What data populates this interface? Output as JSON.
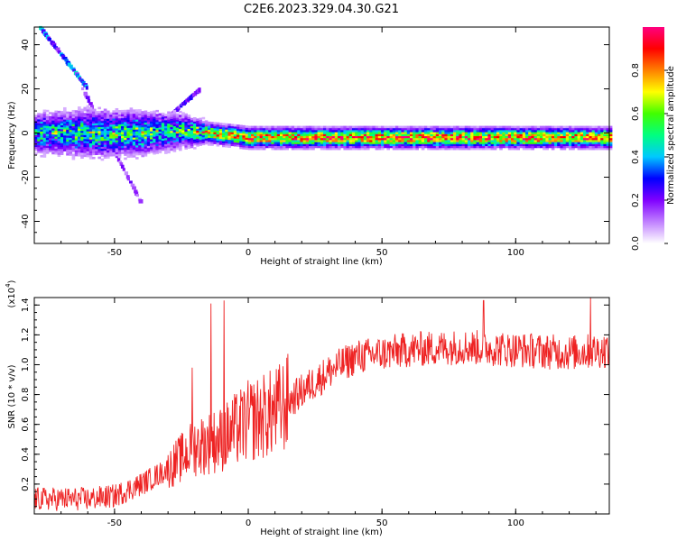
{
  "title": "C2E6.2023.329.04.30.G21",
  "chart_data": [
    {
      "type": "heatmap",
      "xlabel": "Height of straight line (km)",
      "ylabel": "Frequency (Hz)",
      "xlim": [
        -80,
        135
      ],
      "ylim": [
        -50,
        48
      ],
      "xticks": [
        -50,
        0,
        50,
        100
      ],
      "yticks": [
        -40,
        -20,
        0,
        20,
        40
      ],
      "colorbar": {
        "label": "Normalized spectral amplitude",
        "range": [
          0.0,
          1.0
        ],
        "ticks": [
          "0.0",
          "0.2",
          "0.4",
          "0.6",
          "0.8"
        ],
        "colors": [
          "#ffffff",
          "#c080ff",
          "#8000ff",
          "#0000ff",
          "#00c8ff",
          "#00ff80",
          "#40ff00",
          "#ffff00",
          "#ff8000",
          "#ff0000",
          "#ff0080"
        ]
      },
      "band": [
        {
          "x": -80,
          "center": 0,
          "width": 12,
          "peak": 0.55
        },
        {
          "x": -60,
          "center": 0,
          "width": 14,
          "peak": 0.6
        },
        {
          "x": -40,
          "center": 0,
          "width": 13,
          "peak": 0.62
        },
        {
          "x": -25,
          "center": 1,
          "width": 10,
          "peak": 0.6
        },
        {
          "x": -15,
          "center": 0,
          "width": 6,
          "peak": 0.85
        },
        {
          "x": 0,
          "center": -2,
          "width": 6,
          "peak": 0.9
        },
        {
          "x": 40,
          "center": -2,
          "width": 6,
          "peak": 0.95
        },
        {
          "x": 80,
          "center": -2,
          "width": 6,
          "peak": 0.95
        },
        {
          "x": 135,
          "center": -2,
          "width": 6,
          "peak": 0.9
        }
      ],
      "streaks": [
        {
          "from": [
            -78,
            48
          ],
          "to": [
            -60,
            20
          ],
          "level": 0.3
        },
        {
          "from": [
            -62,
            20
          ],
          "to": [
            -40,
            -32
          ],
          "level": 0.15
        },
        {
          "from": [
            -32,
            5
          ],
          "to": [
            -18,
            20
          ],
          "level": 0.2
        }
      ]
    },
    {
      "type": "line",
      "xlabel": "Height of straight line (km)",
      "ylabel": "SNR (10 * v/v)",
      "yscale_note": "(x10^4)",
      "xlim": [
        -80,
        135
      ],
      "ylim": [
        0.0,
        1.45
      ],
      "xticks": [
        -50,
        0,
        50,
        100
      ],
      "yticks": [
        0.2,
        0.4,
        0.6,
        0.8,
        1.0,
        1.2,
        1.4
      ],
      "color": "#ee2222",
      "trend": [
        {
          "x": -80,
          "y": 0.1
        },
        {
          "x": -60,
          "y": 0.1
        },
        {
          "x": -50,
          "y": 0.12
        },
        {
          "x": -40,
          "y": 0.2
        },
        {
          "x": -30,
          "y": 0.3
        },
        {
          "x": -20,
          "y": 0.45
        },
        {
          "x": -10,
          "y": 0.5
        },
        {
          "x": 0,
          "y": 0.62
        },
        {
          "x": 10,
          "y": 0.68
        },
        {
          "x": 20,
          "y": 0.82
        },
        {
          "x": 30,
          "y": 0.95
        },
        {
          "x": 40,
          "y": 1.05
        },
        {
          "x": 60,
          "y": 1.1
        },
        {
          "x": 80,
          "y": 1.12
        },
        {
          "x": 100,
          "y": 1.1
        },
        {
          "x": 120,
          "y": 1.08
        },
        {
          "x": 135,
          "y": 1.1
        }
      ],
      "spikes": [
        {
          "x": -21,
          "y": 0.98
        },
        {
          "x": -14,
          "y": 1.41
        },
        {
          "x": -9,
          "y": 1.43
        },
        {
          "x": 88,
          "y": 1.43
        },
        {
          "x": 128,
          "y": 1.45
        }
      ]
    }
  ]
}
